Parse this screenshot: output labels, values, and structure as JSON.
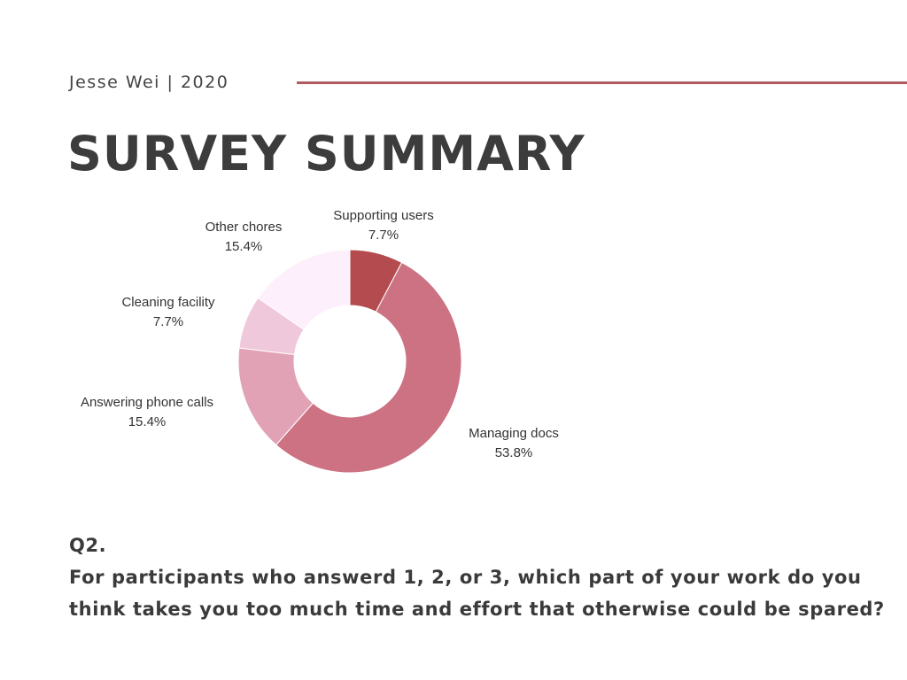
{
  "header": {
    "author": "Jesse Wei | 2020",
    "title": "SURVEY SUMMARY",
    "rule_color": "#b05a60"
  },
  "question": {
    "number": "Q2.",
    "line1": "For participants who answerd 1, 2, or 3, which part of your work do you",
    "line2": "think takes you too much time and effort that otherwise could be spared?"
  },
  "chart_data": {
    "type": "pie",
    "donut": true,
    "slices": [
      {
        "label": "Supporting users",
        "value": 7.7,
        "value_label": "7.7%",
        "color": "#b44c4f"
      },
      {
        "label": "Managing docs",
        "value": 53.8,
        "value_label": "53.8%",
        "color": "#cc7282"
      },
      {
        "label": "Answering phone calls",
        "value": 15.4,
        "value_label": "15.4%",
        "color": "#e2a2b6"
      },
      {
        "label": "Cleaning facility",
        "value": 7.7,
        "value_label": "7.7%",
        "color": "#f0c8dc"
      },
      {
        "label": "Other chores",
        "value": 15.4,
        "value_label": "15.4%",
        "color": "#fdf0fc"
      }
    ]
  }
}
